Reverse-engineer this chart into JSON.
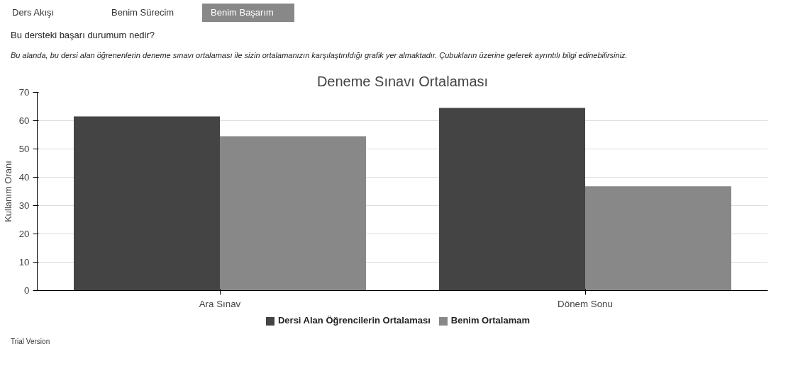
{
  "chart_data": {
    "type": "bar",
    "title": "Deneme Sınavı Ortalaması",
    "ylabel": "Kullanım Oranı",
    "categories": [
      "Ara Sınav",
      "Dönem Sonu"
    ],
    "series": [
      {
        "name": "Dersi Alan Öğrencilerin Ortalaması",
        "color": "#444444",
        "values": [
          61.5,
          64.5
        ]
      },
      {
        "name": "Benim Ortalamam",
        "color": "#888888",
        "values": [
          54.5,
          36.8
        ]
      }
    ],
    "ylim": [
      0,
      70
    ],
    "yticks": [
      0,
      10,
      20,
      30,
      40,
      50,
      60,
      70
    ],
    "grid": "y",
    "legend": "bottom",
    "annotations": [
      "Ders Akışı",
      "Benim Sürecim",
      "Benim Başarım",
      "Bu dersteki başarı durumum nedir?",
      "Bu alanda, bu dersi alan öğrenenlerin deneme sınavı ortalaması ile sizin ortalamanızın karşılaştırıldığı grafik yer almaktadır. Çubukların üzerine gelerek ayrıntılı bilgi edinebilirsiniz.",
      "Trial Version"
    ]
  }
}
